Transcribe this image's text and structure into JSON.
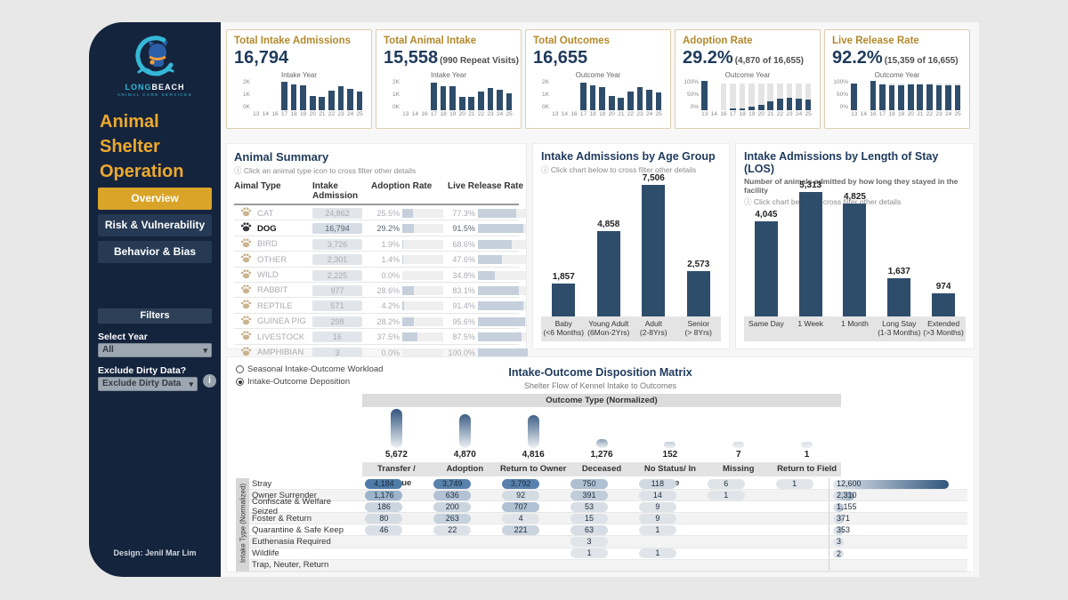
{
  "sidebar": {
    "logo": {
      "line1_a": "LONG",
      "line1_b": "BEACH",
      "line2": "ANIMAL CARE SERVICES"
    },
    "title": "Animal Shelter Operation",
    "nav": [
      {
        "label": "Overview",
        "active": true
      },
      {
        "label": "Risk & Vulnerability",
        "active": false
      },
      {
        "label": "Behavior & Bias",
        "active": false
      }
    ],
    "filters_header": "Filters",
    "select_year_label": "Select Year",
    "select_year_value": "All",
    "exclude_label": "Exclude Dirty Data?",
    "exclude_value": "Exclude Dirty Data",
    "info_icon": "i",
    "credit": "Design: Jenil Mar Lim"
  },
  "colors": {
    "navy": "#15243d",
    "gold": "#d9a428",
    "bar_blue": "#2e4d6b",
    "card_border": "#ddcfae",
    "title_navy": "#1f3a5c"
  },
  "kpi_cards": [
    {
      "title": "Total Intake Admissions",
      "value": "16,794",
      "note": "",
      "chart": {
        "title": "Intake Year",
        "yticks": [
          "2K",
          "1K",
          "0K"
        ],
        "max": 2800,
        "x": [
          "13",
          "14",
          "16",
          "17",
          "18",
          "19",
          "20",
          "21",
          "22",
          "23",
          "24",
          "25"
        ],
        "values": [
          0,
          0,
          0,
          2620,
          2350,
          2300,
          1330,
          1260,
          1800,
          2230,
          2000,
          1700
        ],
        "tracks": null
      }
    },
    {
      "title": "Total Animal Intake",
      "value": "15,558",
      "note": "(990 Repeat Visits)",
      "chart": {
        "title": "Intake Year",
        "yticks": [
          "2K",
          "1K",
          "0K"
        ],
        "max": 2800,
        "x": [
          "13",
          "14",
          "16",
          "17",
          "18",
          "19",
          "20",
          "21",
          "22",
          "23",
          "24",
          "25"
        ],
        "values": [
          0,
          0,
          0,
          2560,
          2250,
          2230,
          1260,
          1230,
          1700,
          2080,
          1880,
          1600
        ],
        "tracks": null
      }
    },
    {
      "title": "Total Outcomes",
      "value": "16,655",
      "note": "",
      "chart": {
        "title": "Outcome Year",
        "yticks": [
          "2K",
          "1K",
          "0K"
        ],
        "max": 2800,
        "x": [
          "13",
          "14",
          "16",
          "17",
          "18",
          "19",
          "20",
          "21",
          "22",
          "23",
          "24",
          "25"
        ],
        "values": [
          0,
          0,
          0,
          2520,
          2300,
          2160,
          1340,
          1160,
          1760,
          2160,
          1900,
          1650
        ],
        "tracks": null
      }
    },
    {
      "title": "Adoption Rate",
      "value": "29.2%",
      "note": "(4,870 of 16,655)",
      "chart": {
        "title": "Outcome Year",
        "yticks": [
          "100%",
          "50%",
          "0%"
        ],
        "max": 115,
        "x": [
          "13",
          "14",
          "16",
          "17",
          "18",
          "19",
          "20",
          "21",
          "22",
          "23",
          "24",
          "25"
        ],
        "values": [
          112,
          0,
          0,
          8,
          8,
          13,
          22,
          34,
          45,
          48,
          45,
          42
        ],
        "tracks": [
          0,
          0,
          100,
          100,
          100,
          100,
          100,
          100,
          100,
          100,
          100,
          100
        ]
      }
    },
    {
      "title": "Live Release Rate",
      "value": "92.2%",
      "note": "(15,359 of 16,655)",
      "chart": {
        "title": "Outcome Year",
        "yticks": [
          "100%",
          "50%",
          "0%"
        ],
        "max": 115,
        "x": [
          "13",
          "14",
          "16",
          "17",
          "18",
          "19",
          "20",
          "21",
          "22",
          "23",
          "24",
          "25"
        ],
        "values": [
          100,
          0,
          112,
          97,
          95,
          95,
          97,
          97,
          97,
          96,
          95,
          95
        ],
        "tracks": [
          100,
          0,
          100,
          100,
          100,
          100,
          100,
          100,
          100,
          100,
          100,
          100
        ]
      }
    }
  ],
  "animal_summary": {
    "title": "Animal Summary",
    "subtitle": "ⓘ Click an animal type icon to cross filter other details",
    "headers": [
      "Aimal Type",
      "Intake Admission",
      "Adoption Rate",
      "Live Release Rate"
    ],
    "max_intake": 24862,
    "rows": [
      {
        "animal": "CAT",
        "icon": "cat-icon",
        "intake": 24862,
        "adoption": 25.5,
        "live": 77.3,
        "selected": false
      },
      {
        "animal": "DOG",
        "icon": "dog-icon",
        "intake": 16794,
        "adoption": 29.2,
        "live": 91.5,
        "selected": true
      },
      {
        "animal": "BIRD",
        "icon": "bird-icon",
        "intake": 3726,
        "adoption": 1.9,
        "live": 68.6,
        "selected": false
      },
      {
        "animal": "OTHER",
        "icon": "other-icon",
        "intake": 2301,
        "adoption": 1.4,
        "live": 47.6,
        "selected": false
      },
      {
        "animal": "WILD",
        "icon": "wild-icon",
        "intake": 2225,
        "adoption": 0.0,
        "live": 34.8,
        "selected": false
      },
      {
        "animal": "RABBIT",
        "icon": "rabbit-icon",
        "intake": 977,
        "adoption": 28.6,
        "live": 83.1,
        "selected": false
      },
      {
        "animal": "REPTILE",
        "icon": "reptile-icon",
        "intake": 571,
        "adoption": 4.2,
        "live": 91.4,
        "selected": false
      },
      {
        "animal": "GUINEA PIG",
        "icon": "guinea-pig-icon",
        "intake": 298,
        "adoption": 28.2,
        "live": 95.6,
        "selected": false
      },
      {
        "animal": "LIVESTOCK",
        "icon": "livestock-icon",
        "intake": 16,
        "adoption": 37.5,
        "live": 87.5,
        "selected": false
      },
      {
        "animal": "AMPHIBIAN",
        "icon": "amphibian-icon",
        "intake": 3,
        "adoption": 0.0,
        "live": 100.0,
        "selected": false
      }
    ]
  },
  "age_chart": {
    "title": "Intake Admissions by Age Group",
    "subtitle": "ⓘ Click chart below to cross filter other details",
    "categories": [
      [
        "Baby",
        "(<6 Months)"
      ],
      [
        "Young Adult",
        "(6Mon-2Yrs)"
      ],
      [
        "Adult",
        "(2-8Yrs)"
      ],
      [
        "Senior",
        "(> 8Yrs)"
      ]
    ],
    "values": [
      1857,
      4858,
      7506,
      2573
    ]
  },
  "los_chart": {
    "title": "Intake Admissions by Length of Stay (LOS)",
    "subtitle1": "Number of animals admitted by how long they stayed in the facility",
    "subtitle2": "ⓘ Click chart bellow  to cross filter other details",
    "categories": [
      [
        "Same Day"
      ],
      [
        "1 Week"
      ],
      [
        "1 Month"
      ],
      [
        "Long Stay",
        "(1-3 Months)"
      ],
      [
        "Extended",
        "(>3 Months)"
      ]
    ],
    "values": [
      4045,
      5313,
      4825,
      1637,
      974
    ]
  },
  "matrix": {
    "radio_options": [
      "Seasonal Intake-Outcome Workload",
      "Intake-Outcome Deposition"
    ],
    "selected_radio": 1,
    "title": "Intake-Outcome Disposition Matrix",
    "subtitle": "Shelter Flow of Kennel Intake to Outcomes",
    "col_band": "Outcome Type (Normalized)",
    "row_band": "Intake Type (Normalized)",
    "columns": [
      {
        "label": "Transfer / Rescue",
        "total": 5672
      },
      {
        "label": "Adoption",
        "total": 4870
      },
      {
        "label": "Return to Owner",
        "total": 4816
      },
      {
        "label": "Deceased",
        "total": 1276
      },
      {
        "label": "No Status/ In Care",
        "total": 152
      },
      {
        "label": "Missing",
        "total": 7
      },
      {
        "label": "Return to Field",
        "total": 1
      }
    ],
    "rows": [
      {
        "label": "Stray",
        "cells": [
          4184,
          3749,
          3792,
          750,
          118,
          6,
          1
        ],
        "total": 12600
      },
      {
        "label": "Owner Surrender",
        "cells": [
          1176,
          636,
          92,
          391,
          14,
          1,
          null
        ],
        "total": 2310
      },
      {
        "label": "Confiscate & Welfare Seized",
        "cells": [
          186,
          200,
          707,
          53,
          9,
          null,
          null
        ],
        "total": 1155
      },
      {
        "label": "Foster & Return",
        "cells": [
          80,
          263,
          4,
          15,
          9,
          null,
          null
        ],
        "total": 371
      },
      {
        "label": "Quarantine & Safe Keep",
        "cells": [
          46,
          22,
          221,
          63,
          1,
          null,
          null
        ],
        "total": 353
      },
      {
        "label": "Euthenasia Required",
        "cells": [
          null,
          null,
          null,
          3,
          null,
          null,
          null
        ],
        "total": 3
      },
      {
        "label": "Wildlife",
        "cells": [
          null,
          null,
          null,
          1,
          1,
          null,
          null
        ],
        "total": 2
      },
      {
        "label": "Trap, Neuter, Return",
        "cells": [
          null,
          null,
          null,
          null,
          null,
          null,
          null
        ],
        "total": null
      }
    ]
  },
  "chart_data": [
    {
      "type": "bar",
      "title": "Intake Admissions by Age Group",
      "categories": [
        "Baby (<6 Months)",
        "Young Adult (6Mon-2Yrs)",
        "Adult (2-8Yrs)",
        "Senior (> 8Yrs)"
      ],
      "values": [
        1857,
        4858,
        7506,
        2573
      ]
    },
    {
      "type": "bar",
      "title": "Intake Admissions by Length of Stay (LOS)",
      "categories": [
        "Same Day",
        "1 Week",
        "1 Month",
        "Long Stay (1-3 Months)",
        "Extended (>3 Months)"
      ],
      "values": [
        4045,
        5313,
        4825,
        1637,
        974
      ]
    },
    {
      "type": "heatmap",
      "title": "Intake-Outcome Disposition Matrix",
      "x_categories": [
        "Transfer / Rescue",
        "Adoption",
        "Return to Owner",
        "Deceased",
        "No Status/ In Care",
        "Missing",
        "Return to Field"
      ],
      "y_categories": [
        "Stray",
        "Owner Surrender",
        "Confiscate & Welfare Seized",
        "Foster & Return",
        "Quarantine & Safe Keep",
        "Euthenasia Required",
        "Wildlife",
        "Trap, Neuter, Return"
      ],
      "col_totals": [
        5672,
        4870,
        4816,
        1276,
        152,
        7,
        1
      ],
      "row_totals": [
        12600,
        2310,
        1155,
        371,
        353,
        3,
        2,
        null
      ],
      "values": [
        [
          4184,
          3749,
          3792,
          750,
          118,
          6,
          1
        ],
        [
          1176,
          636,
          92,
          391,
          14,
          1,
          null
        ],
        [
          186,
          200,
          707,
          53,
          9,
          null,
          null
        ],
        [
          80,
          263,
          4,
          15,
          9,
          null,
          null
        ],
        [
          46,
          22,
          221,
          63,
          1,
          null,
          null
        ],
        [
          null,
          null,
          null,
          3,
          null,
          null,
          null
        ],
        [
          null,
          null,
          null,
          1,
          1,
          null,
          null
        ],
        [
          null,
          null,
          null,
          null,
          null,
          null,
          null
        ]
      ]
    }
  ]
}
